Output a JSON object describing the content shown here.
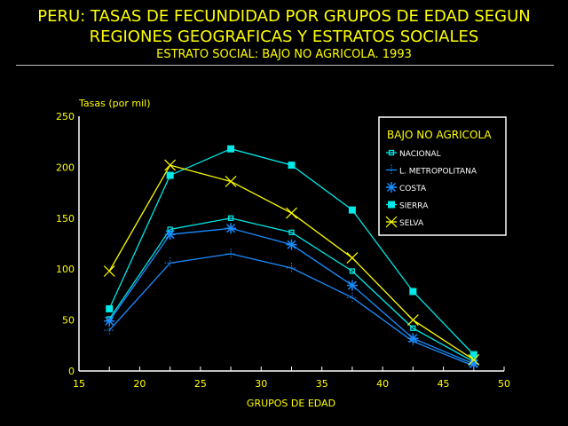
{
  "chart_data": {
    "type": "line",
    "title": "PERU: TASAS DE FECUNDIDAD POR GRUPOS DE EDAD SEGUN",
    "title_line2": "REGIONES GEOGRAFICAS Y ESTRATOS SOCIALES",
    "subtitle": "ESTRATO SOCIAL: BAJO NO AGRICOLA. 1993",
    "xlabel": "GRUPOS DE EDAD",
    "ylabel": "Tasas (por mil)",
    "xlim": [
      15,
      50
    ],
    "ylim": [
      0,
      250
    ],
    "xticks": [
      15,
      20,
      25,
      30,
      35,
      40,
      45,
      50
    ],
    "yticks": [
      0,
      50,
      100,
      150,
      200,
      250
    ],
    "legend_title": "BAJO NO AGRICOLA",
    "legend_position": "top-right",
    "x": [
      17.5,
      22.5,
      27.5,
      32.5,
      37.5,
      42.5,
      47.5
    ],
    "series": [
      {
        "name": "NACIONAL",
        "color": "#00e8e8",
        "marker": "open-square",
        "values": [
          51,
          139,
          150,
          136,
          98,
          42,
          9
        ]
      },
      {
        "name": "L. METROPOLITANA",
        "color": "#1a8cff",
        "marker": "plus",
        "values": [
          40,
          106,
          115,
          101,
          72,
          29,
          5
        ]
      },
      {
        "name": "COSTA",
        "color": "#1a8cff",
        "marker": "star",
        "values": [
          49,
          134,
          140,
          124,
          84,
          32,
          7
        ]
      },
      {
        "name": "SIERRA",
        "color": "#00e8e8",
        "marker": "filled-square",
        "values": [
          61,
          192,
          218,
          202,
          158,
          78,
          16
        ]
      },
      {
        "name": "SELVA",
        "color": "#ffff00",
        "marker": "x",
        "values": [
          98,
          202,
          186,
          155,
          111,
          50,
          11
        ]
      }
    ]
  }
}
